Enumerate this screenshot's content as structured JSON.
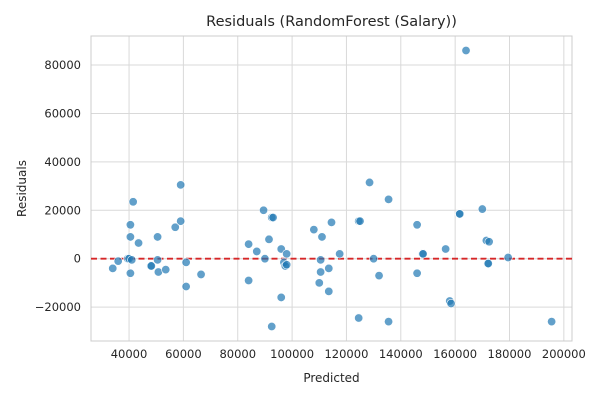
{
  "chart_data": {
    "type": "scatter",
    "title": "Residuals (RandomForest (Salary))",
    "xlabel": "Predicted",
    "ylabel": "Residuals",
    "xlim": [
      26000,
      203000
    ],
    "ylim": [
      -34000,
      92000
    ],
    "xticks": [
      40000,
      60000,
      80000,
      100000,
      120000,
      140000,
      160000,
      180000,
      200000
    ],
    "yticks": [
      -20000,
      0,
      20000,
      40000,
      60000,
      80000
    ],
    "xtick_labels": [
      "40000",
      "60000",
      "80000",
      "100000",
      "120000",
      "140000",
      "160000",
      "180000",
      "200000"
    ],
    "ytick_labels": [
      "−20000",
      "0",
      "20000",
      "40000",
      "60000",
      "80000"
    ],
    "grid": true,
    "reference_line": {
      "y": 0,
      "style": "dashed",
      "color": "#d62728"
    },
    "point_color": "#1f77b4",
    "points": [
      {
        "x": 34000,
        "y": -4000
      },
      {
        "x": 36000,
        "y": -1000
      },
      {
        "x": 39500,
        "y": 0
      },
      {
        "x": 40000,
        "y": 0
      },
      {
        "x": 40500,
        "y": 9000
      },
      {
        "x": 40500,
        "y": 14000
      },
      {
        "x": 40500,
        "y": -6000
      },
      {
        "x": 41000,
        "y": -500
      },
      {
        "x": 41500,
        "y": 23500
      },
      {
        "x": 43500,
        "y": 6500
      },
      {
        "x": 48000,
        "y": -3000
      },
      {
        "x": 48200,
        "y": -3000
      },
      {
        "x": 50500,
        "y": 9000
      },
      {
        "x": 50500,
        "y": -500
      },
      {
        "x": 50800,
        "y": -5500
      },
      {
        "x": 53500,
        "y": -4500
      },
      {
        "x": 57000,
        "y": 13000
      },
      {
        "x": 59000,
        "y": 30500
      },
      {
        "x": 59000,
        "y": 15500
      },
      {
        "x": 61000,
        "y": -11500
      },
      {
        "x": 61000,
        "y": -1500
      },
      {
        "x": 66500,
        "y": -6500
      },
      {
        "x": 84000,
        "y": 6000
      },
      {
        "x": 84000,
        "y": -9000
      },
      {
        "x": 87000,
        "y": 3000
      },
      {
        "x": 89500,
        "y": 20000
      },
      {
        "x": 90000,
        "y": 0
      },
      {
        "x": 91500,
        "y": 8000
      },
      {
        "x": 92500,
        "y": 17000
      },
      {
        "x": 93000,
        "y": 17000
      },
      {
        "x": 92500,
        "y": -28000
      },
      {
        "x": 96000,
        "y": 4000
      },
      {
        "x": 96000,
        "y": -16000
      },
      {
        "x": 97000,
        "y": -1500
      },
      {
        "x": 97500,
        "y": -3000
      },
      {
        "x": 98000,
        "y": -2500
      },
      {
        "x": 98000,
        "y": 2000
      },
      {
        "x": 108000,
        "y": 12000
      },
      {
        "x": 110000,
        "y": -10000
      },
      {
        "x": 110500,
        "y": -5500
      },
      {
        "x": 110500,
        "y": -500
      },
      {
        "x": 111000,
        "y": 9000
      },
      {
        "x": 113500,
        "y": -4000
      },
      {
        "x": 113500,
        "y": -13500
      },
      {
        "x": 114500,
        "y": 15000
      },
      {
        "x": 117500,
        "y": 2000
      },
      {
        "x": 124500,
        "y": 15500
      },
      {
        "x": 125000,
        "y": 15500
      },
      {
        "x": 124500,
        "y": -24500
      },
      {
        "x": 128500,
        "y": 31500
      },
      {
        "x": 130000,
        "y": 0
      },
      {
        "x": 132000,
        "y": -7000
      },
      {
        "x": 135500,
        "y": 24500
      },
      {
        "x": 135500,
        "y": -26000
      },
      {
        "x": 146000,
        "y": 14000
      },
      {
        "x": 146000,
        "y": -6000
      },
      {
        "x": 148000,
        "y": 2000
      },
      {
        "x": 148200,
        "y": 2000
      },
      {
        "x": 156500,
        "y": 4000
      },
      {
        "x": 158000,
        "y": -17500
      },
      {
        "x": 158500,
        "y": -18500
      },
      {
        "x": 161500,
        "y": 18500
      },
      {
        "x": 161700,
        "y": 18500
      },
      {
        "x": 164000,
        "y": 86000
      },
      {
        "x": 170000,
        "y": 20500
      },
      {
        "x": 171500,
        "y": 7500
      },
      {
        "x": 172000,
        "y": -2000
      },
      {
        "x": 172200,
        "y": -2000
      },
      {
        "x": 172500,
        "y": 7000
      },
      {
        "x": 179500,
        "y": 500
      },
      {
        "x": 195500,
        "y": -26000
      }
    ]
  }
}
